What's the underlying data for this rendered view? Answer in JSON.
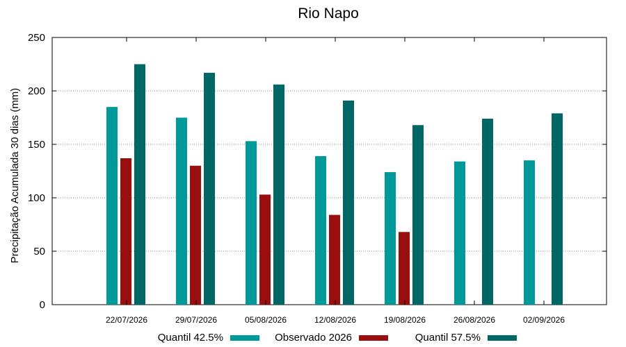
{
  "chart_data": {
    "type": "bar",
    "title": "Rio Napo",
    "ylabel": "Precipitação Acumulada 30 dias (mm)",
    "xlabel": "",
    "ylim": [
      0,
      250
    ],
    "yticks": [
      0,
      50,
      100,
      150,
      200,
      250
    ],
    "grid": true,
    "legend_position": "bottom",
    "categories": [
      "22/07/2026",
      "29/07/2026",
      "05/08/2026",
      "12/08/2026",
      "19/08/2026",
      "26/08/2026",
      "02/09/2026"
    ],
    "series": [
      {
        "name": "Quantil 42.5%",
        "color": "#009999",
        "values": [
          185,
          175,
          153,
          139,
          124,
          134,
          135
        ]
      },
      {
        "name": "Observado 2026",
        "color": "#990f0f",
        "values": [
          137,
          130,
          103,
          84,
          68,
          null,
          null
        ]
      },
      {
        "name": "Quantil 57.5%",
        "color": "#006666",
        "values": [
          225,
          217,
          206,
          191,
          168,
          174,
          179
        ]
      }
    ]
  }
}
